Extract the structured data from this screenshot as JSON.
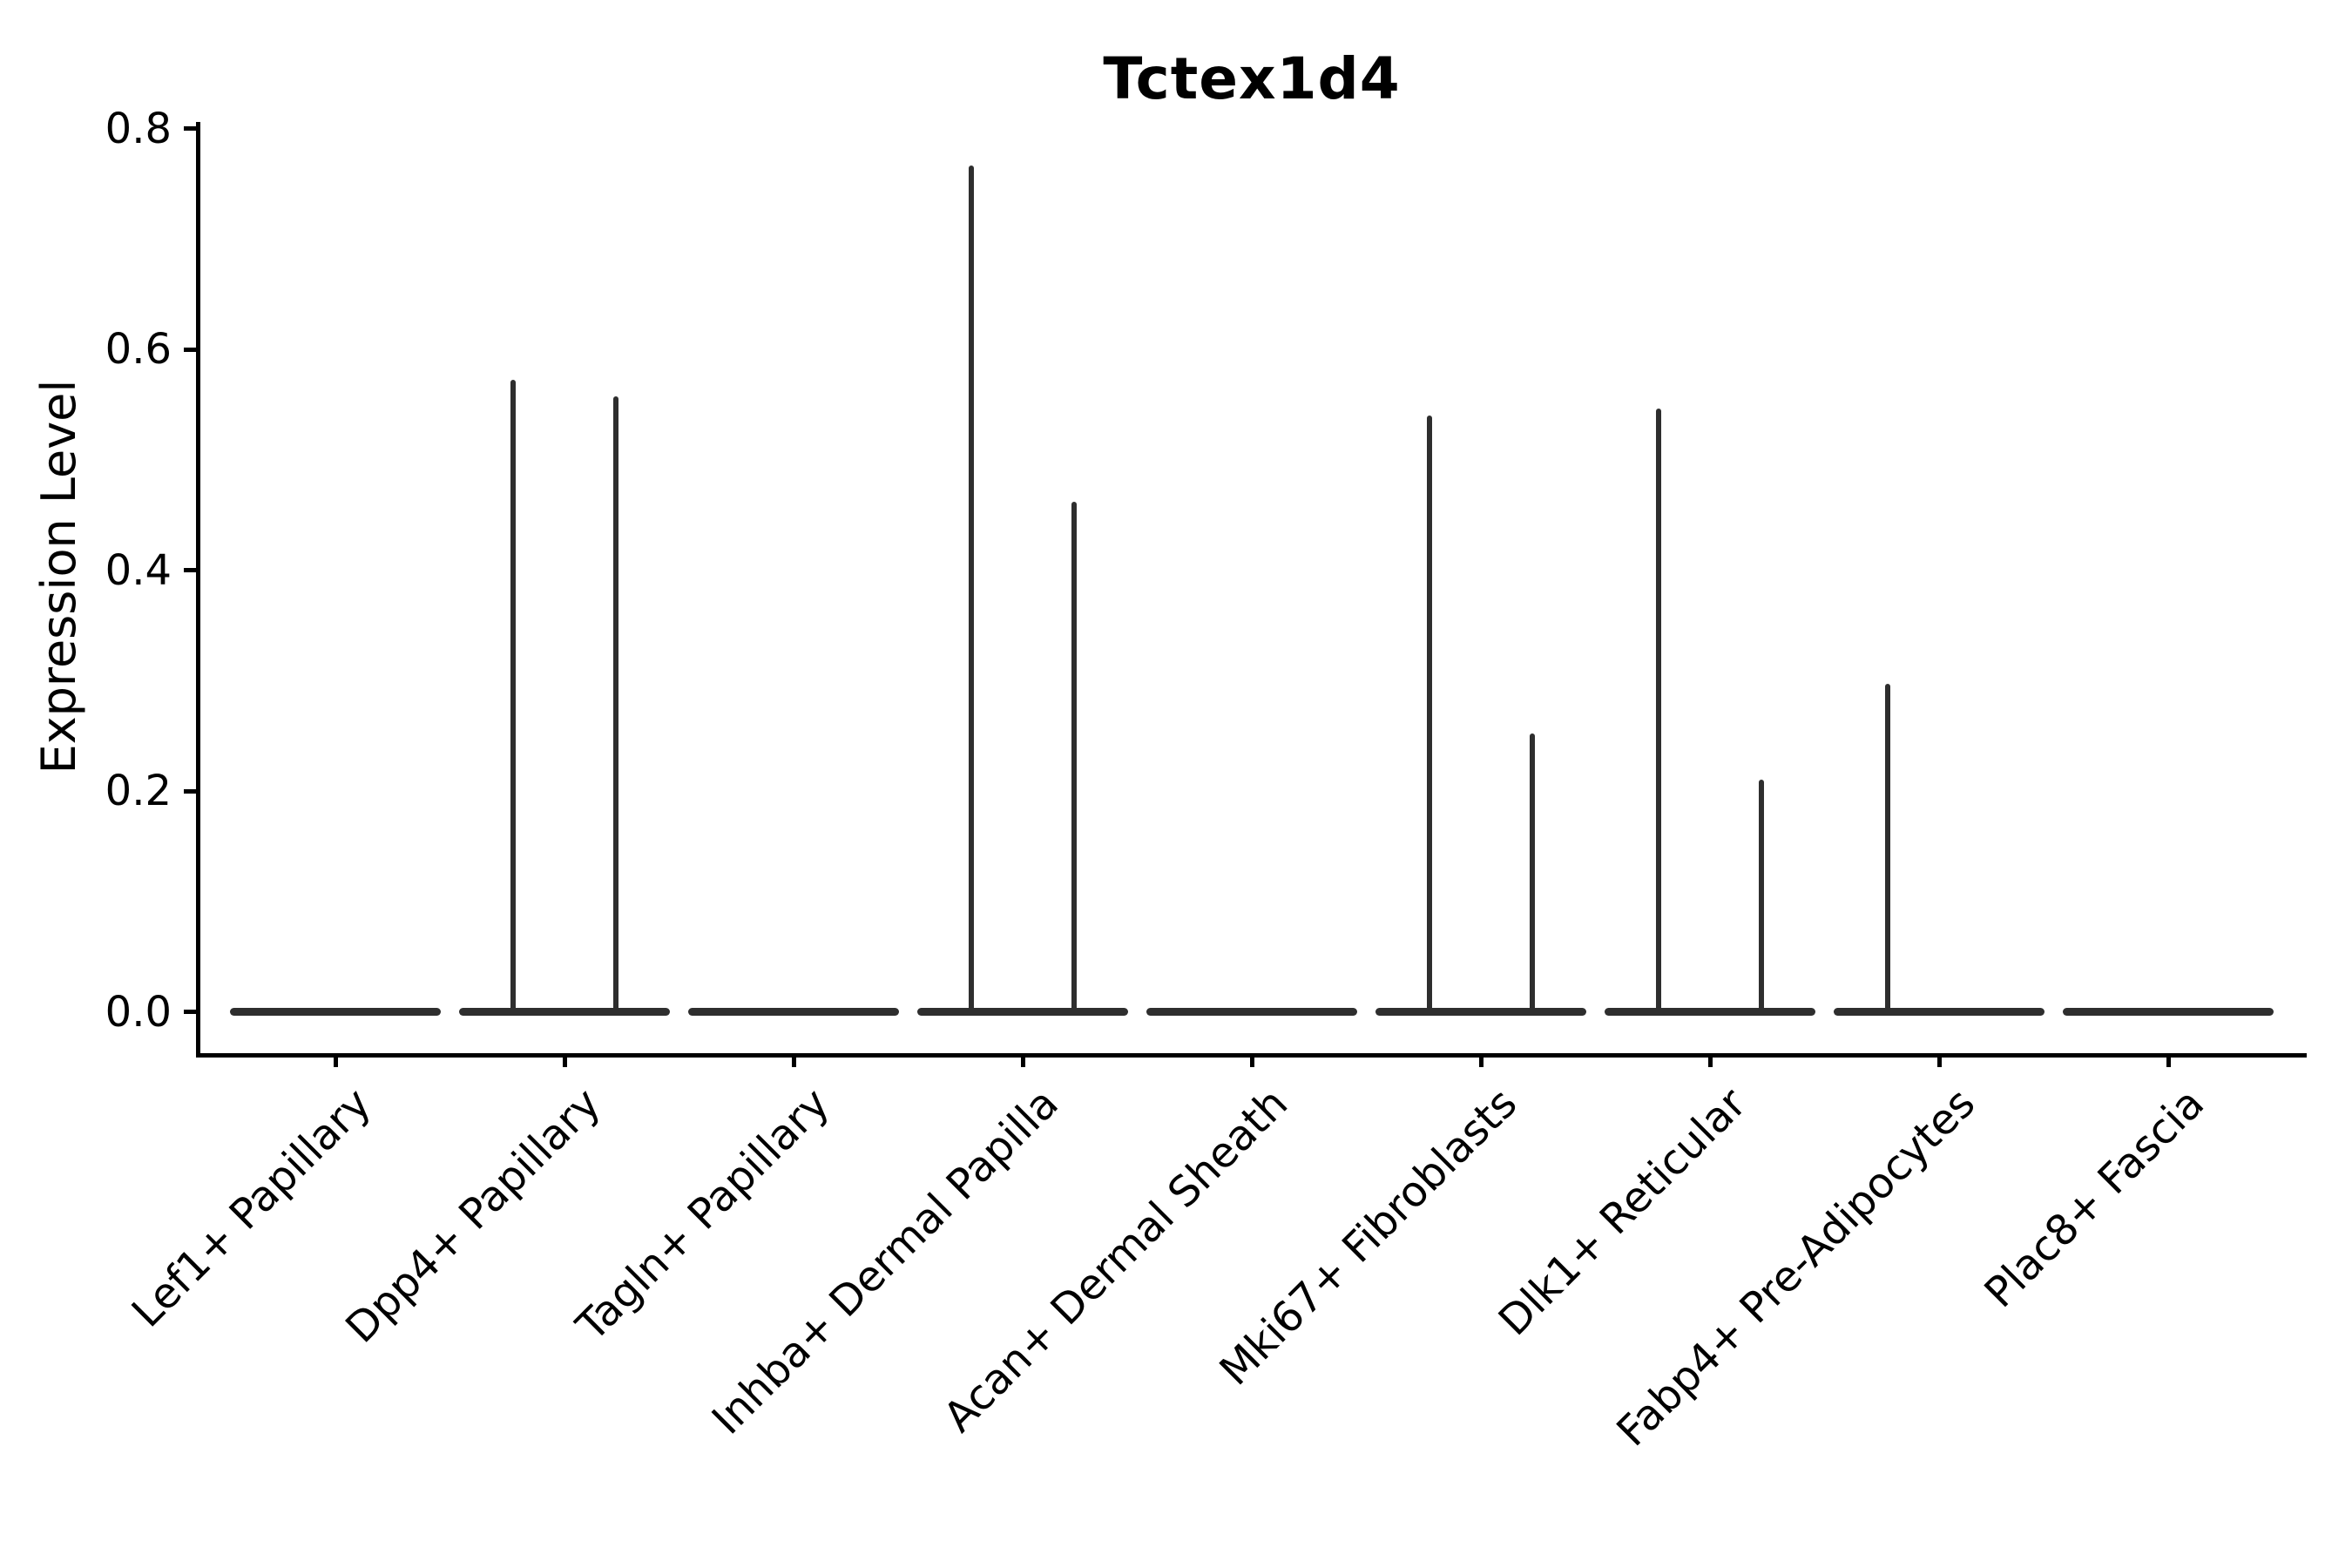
{
  "figure": {
    "title": "Tctex1d4",
    "ylabel": "Expression Level"
  },
  "chart_data": {
    "type": "violin",
    "title": "Tctex1d4",
    "xlabel": "",
    "ylabel": "Expression Level",
    "ylim": [
      -0.038,
      0.806
    ],
    "yticks": [
      0.0,
      0.2,
      0.4,
      0.6,
      0.8
    ],
    "ytick_labels": [
      "0.0",
      "0.2",
      "0.4",
      "0.6",
      "0.8"
    ],
    "grid": false,
    "legend": "none",
    "line_color": "#2e2e2e",
    "axis_color": "#000000",
    "categories": [
      "Lef1+ Papillary",
      "Dpp4+ Papillary",
      "Tagln+ Papillary",
      "Inhba+ Dermal Papilla",
      "Acan+ Dermal Sheath",
      "Mki67+ Fibroblasts",
      "Dlk1+ Reticular",
      "Fabp4+ Pre-Adipocytes",
      "Plac8+ Fascia"
    ],
    "description": "Split violins collapsed to flat bars at expression 0 with thin density spikes at the maximum expression of each half; categories without expression show only the flat bar.",
    "series": [
      {
        "name": "left-half-max",
        "values": [
          0,
          0.573,
          0,
          0.767,
          0,
          0.54,
          0.547,
          0.297,
          0
        ]
      },
      {
        "name": "right-half-max",
        "values": [
          0,
          0.558,
          0,
          0.462,
          0,
          0.252,
          0.21,
          0,
          0
        ]
      }
    ]
  }
}
